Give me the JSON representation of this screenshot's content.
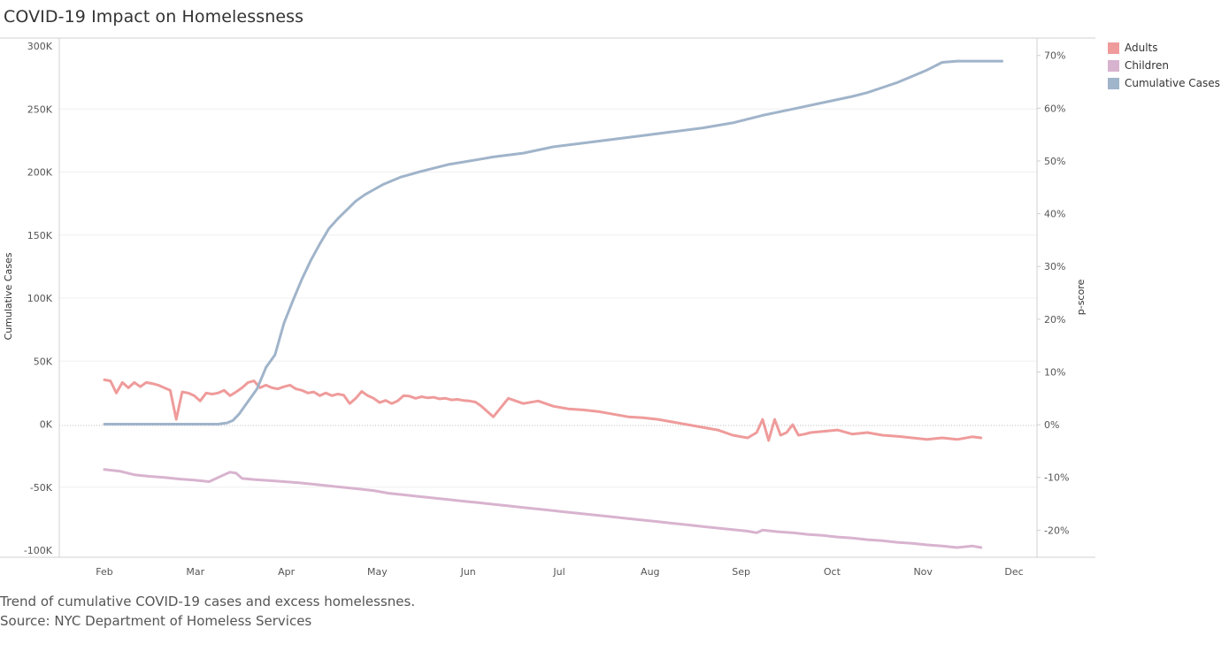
{
  "header": {
    "title": "COVID-19 Impact on Homelessness"
  },
  "caption": {
    "line1": "Trend of cumulative COVID-19 cases and excess homelessnes.",
    "line2": "Source: NYC Department of Homeless Services"
  },
  "legend": [
    {
      "label": "Adults",
      "color": "#ef9b9b"
    },
    {
      "label": "Children",
      "color": "#d8b3cf"
    },
    {
      "label": "Cumulative Cases",
      "color": "#a0b4ca"
    }
  ],
  "chart_data": {
    "type": "line",
    "title": "COVID-19 Impact on Homelessness",
    "x_ticks": [
      "Feb",
      "Mar",
      "Apr",
      "May",
      "Jun",
      "Jul",
      "Aug",
      "Sep",
      "Oct",
      "Nov",
      "Dec"
    ],
    "y_left": {
      "label": "Cumulative Cases",
      "ticks": [
        "300K",
        "250K",
        "200K",
        "150K",
        "100K",
        "50K",
        "0K",
        "-50K",
        "-100K"
      ],
      "ylim": [
        -100000,
        300000
      ]
    },
    "y_right": {
      "label": "p-score",
      "ticks": [
        "70%",
        "60%",
        "50%",
        "40%",
        "30%",
        "20%",
        "10%",
        "0%",
        "-10%",
        "-20%"
      ],
      "ylim": [
        -23.8,
        71.8
      ]
    },
    "grid": true,
    "legend_position": "top-right",
    "x_units": "days since Feb 1",
    "series": [
      {
        "name": "Cumulative Cases",
        "axis": "left",
        "color": "#a0b4ca",
        "x": [
          0,
          14,
          28,
          38,
          41,
          43,
          45,
          48,
          51,
          54,
          57,
          60,
          63,
          66,
          69,
          72,
          75,
          78,
          81,
          84,
          87,
          90,
          93,
          96,
          99,
          102,
          105,
          110,
          115,
          120,
          125,
          130,
          140,
          150,
          160,
          170,
          180,
          190,
          200,
          210,
          220,
          230,
          240,
          250,
          255,
          260,
          265,
          270,
          275,
          280,
          285,
          290,
          295,
          300
        ],
        "values": [
          0,
          0,
          0,
          0,
          1000,
          3000,
          8000,
          18000,
          28000,
          45000,
          55000,
          80000,
          98000,
          115000,
          130000,
          143000,
          155000,
          163000,
          170000,
          177000,
          182000,
          186000,
          190000,
          193000,
          196000,
          198000,
          200000,
          203000,
          206000,
          208000,
          210000,
          212000,
          215000,
          220000,
          223000,
          226000,
          229000,
          232000,
          235000,
          239000,
          245000,
          250000,
          255000,
          260000,
          263000,
          267000,
          271000,
          276000,
          281000,
          287000,
          288000,
          288000,
          288000,
          288000
        ]
      },
      {
        "name": "Adults",
        "axis": "right",
        "color": "#ef9b9b",
        "x": [
          0,
          2,
          4,
          6,
          8,
          10,
          12,
          14,
          16,
          18,
          20,
          22,
          24,
          26,
          28,
          30,
          32,
          34,
          36,
          38,
          40,
          42,
          44,
          46,
          48,
          50,
          52,
          54,
          56,
          58,
          60,
          62,
          64,
          66,
          68,
          70,
          72,
          74,
          76,
          78,
          80,
          82,
          84,
          86,
          88,
          90,
          92,
          94,
          96,
          98,
          100,
          102,
          104,
          106,
          108,
          110,
          112,
          114,
          116,
          118,
          120,
          122,
          124,
          126,
          128,
          130,
          135,
          140,
          145,
          150,
          155,
          160,
          165,
          170,
          175,
          180,
          185,
          190,
          195,
          200,
          205,
          210,
          215,
          218,
          220,
          222,
          224,
          226,
          228,
          230,
          232,
          234,
          236,
          240,
          245,
          250,
          255,
          260,
          265,
          270,
          275,
          280,
          285,
          290,
          293
        ],
        "values": [
          8.5,
          8.3,
          6.0,
          8.0,
          7.0,
          8.0,
          7.2,
          8.0,
          7.8,
          7.5,
          7.0,
          6.5,
          1.0,
          6.2,
          6.0,
          5.5,
          4.5,
          6.0,
          5.8,
          6.0,
          6.5,
          5.5,
          6.2,
          7.0,
          8.0,
          8.3,
          7.0,
          7.5,
          7.0,
          6.8,
          7.2,
          7.5,
          6.8,
          6.5,
          6.0,
          6.2,
          5.5,
          6.0,
          5.5,
          5.8,
          5.6,
          4.0,
          5.0,
          6.3,
          5.5,
          5.0,
          4.2,
          4.6,
          4.0,
          4.5,
          5.5,
          5.4,
          5.0,
          5.3,
          5.1,
          5.2,
          4.9,
          5.0,
          4.7,
          4.8,
          4.6,
          4.5,
          4.3,
          3.5,
          2.5,
          1.5,
          5.0,
          4.0,
          4.5,
          3.5,
          3.0,
          2.8,
          2.5,
          2.0,
          1.5,
          1.3,
          1.0,
          0.5,
          0.0,
          -0.5,
          -1.0,
          -2.0,
          -2.5,
          -1.5,
          1.0,
          -3.0,
          1.0,
          -2.0,
          -1.5,
          0.0,
          -2.0,
          -1.8,
          -1.5,
          -1.3,
          -1.0,
          -1.8,
          -1.5,
          -2.0,
          -2.2,
          -2.5,
          -2.8,
          -2.5,
          -2.8,
          -2.3,
          -2.5
        ]
      },
      {
        "name": "Children",
        "axis": "right",
        "color": "#d8b3cf",
        "x": [
          0,
          5,
          10,
          15,
          20,
          25,
          30,
          35,
          40,
          42,
          44,
          46,
          50,
          55,
          60,
          65,
          70,
          75,
          80,
          85,
          90,
          95,
          100,
          105,
          110,
          115,
          120,
          125,
          130,
          135,
          140,
          145,
          150,
          155,
          160,
          165,
          170,
          175,
          180,
          185,
          190,
          195,
          200,
          205,
          210,
          215,
          218,
          220,
          225,
          230,
          235,
          240,
          245,
          250,
          255,
          260,
          265,
          270,
          275,
          280,
          285,
          290,
          293
        ],
        "values": [
          -8.5,
          -8.8,
          -9.5,
          -9.8,
          -10.0,
          -10.3,
          -10.5,
          -10.8,
          -9.5,
          -9.0,
          -9.2,
          -10.2,
          -10.4,
          -10.6,
          -10.8,
          -11.0,
          -11.3,
          -11.6,
          -11.9,
          -12.2,
          -12.5,
          -13.0,
          -13.3,
          -13.6,
          -13.9,
          -14.2,
          -14.5,
          -14.8,
          -15.1,
          -15.4,
          -15.7,
          -16.0,
          -16.3,
          -16.6,
          -16.9,
          -17.2,
          -17.5,
          -17.8,
          -18.1,
          -18.4,
          -18.7,
          -19.0,
          -19.3,
          -19.6,
          -19.9,
          -20.2,
          -20.5,
          -20.0,
          -20.3,
          -20.5,
          -20.8,
          -21.0,
          -21.3,
          -21.5,
          -21.8,
          -22.0,
          -22.3,
          -22.5,
          -22.8,
          -23.0,
          -23.3,
          -23.0,
          -23.3
        ]
      }
    ]
  }
}
